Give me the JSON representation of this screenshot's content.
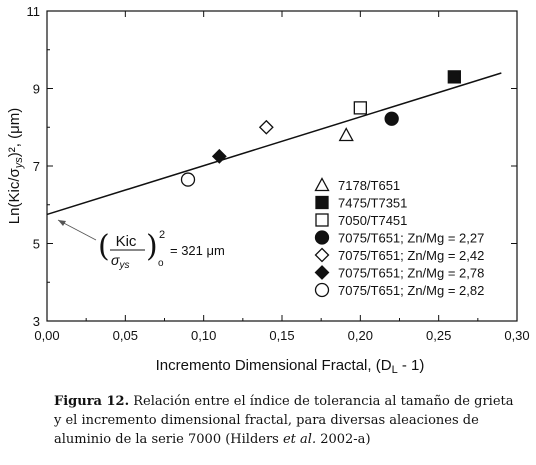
{
  "chart_data": {
    "type": "scatter",
    "xlabel": "Incremento Dimensional Fractal,  (D",
    "xlabel_sub": "L",
    "xlabel_tail": " - 1)",
    "ylabel": "Ln(Kic/σ",
    "ylabel_sub": "ys",
    "ylabel_tail": ")², (μm)",
    "xlim": [
      0.0,
      0.3
    ],
    "ylim": [
      3,
      11
    ],
    "xticks": [
      0.0,
      0.05,
      0.1,
      0.15,
      0.2,
      0.25,
      0.3
    ],
    "xtick_labels": [
      "0,00",
      "0,05",
      "0,10",
      "0,15",
      "0,20",
      "0,25",
      "0,30"
    ],
    "yticks": [
      3,
      5,
      7,
      9,
      11
    ],
    "ytick_labels": [
      "3",
      "5",
      "7",
      "9",
      "11"
    ],
    "series": [
      {
        "name": "7178/T651",
        "marker": "triangle-open",
        "points": [
          [
            0.191,
            7.8
          ]
        ]
      },
      {
        "name": "7475/T7351",
        "marker": "square-filled",
        "points": [
          [
            0.26,
            9.3
          ]
        ]
      },
      {
        "name": "7050/T7451",
        "marker": "square-open",
        "points": [
          [
            0.2,
            8.5
          ]
        ]
      },
      {
        "name": "7075/T651; Zn/Mg = 2,27",
        "marker": "circle-filled",
        "points": [
          [
            0.22,
            8.22
          ]
        ]
      },
      {
        "name": "7075/T651; Zn/Mg = 2,42",
        "marker": "diamond-open",
        "points": [
          [
            0.14,
            8.0
          ]
        ]
      },
      {
        "name": "7075/T651; Zn/Mg = 2,78",
        "marker": "diamond-filled",
        "points": [
          [
            0.11,
            7.25
          ]
        ]
      },
      {
        "name": "7075/T651; Zn/Mg = 2,82",
        "marker": "circle-open",
        "points": [
          [
            0.09,
            6.65
          ]
        ]
      }
    ],
    "fit_line": {
      "x": [
        0.0,
        0.29
      ],
      "y": [
        5.75,
        9.4
      ]
    },
    "annotation": {
      "frac_num": "Kic",
      "frac_den": "σ",
      "frac_den_sub": "ys",
      "exponent": "2",
      "outer_sub": "o",
      "value_text": "= 321 μm"
    },
    "legend_position": "bottom-right",
    "grid": false
  },
  "caption": {
    "label": "Figura 12.",
    "text_1": " Relación entre el índice de tolerancia al tamaño de grieta y el incremento dimensional fractal, para diversas aleaciones de aluminio de la serie 7000 (Hilders ",
    "et_al": "et al.",
    "text_2": " 2002-a)"
  }
}
